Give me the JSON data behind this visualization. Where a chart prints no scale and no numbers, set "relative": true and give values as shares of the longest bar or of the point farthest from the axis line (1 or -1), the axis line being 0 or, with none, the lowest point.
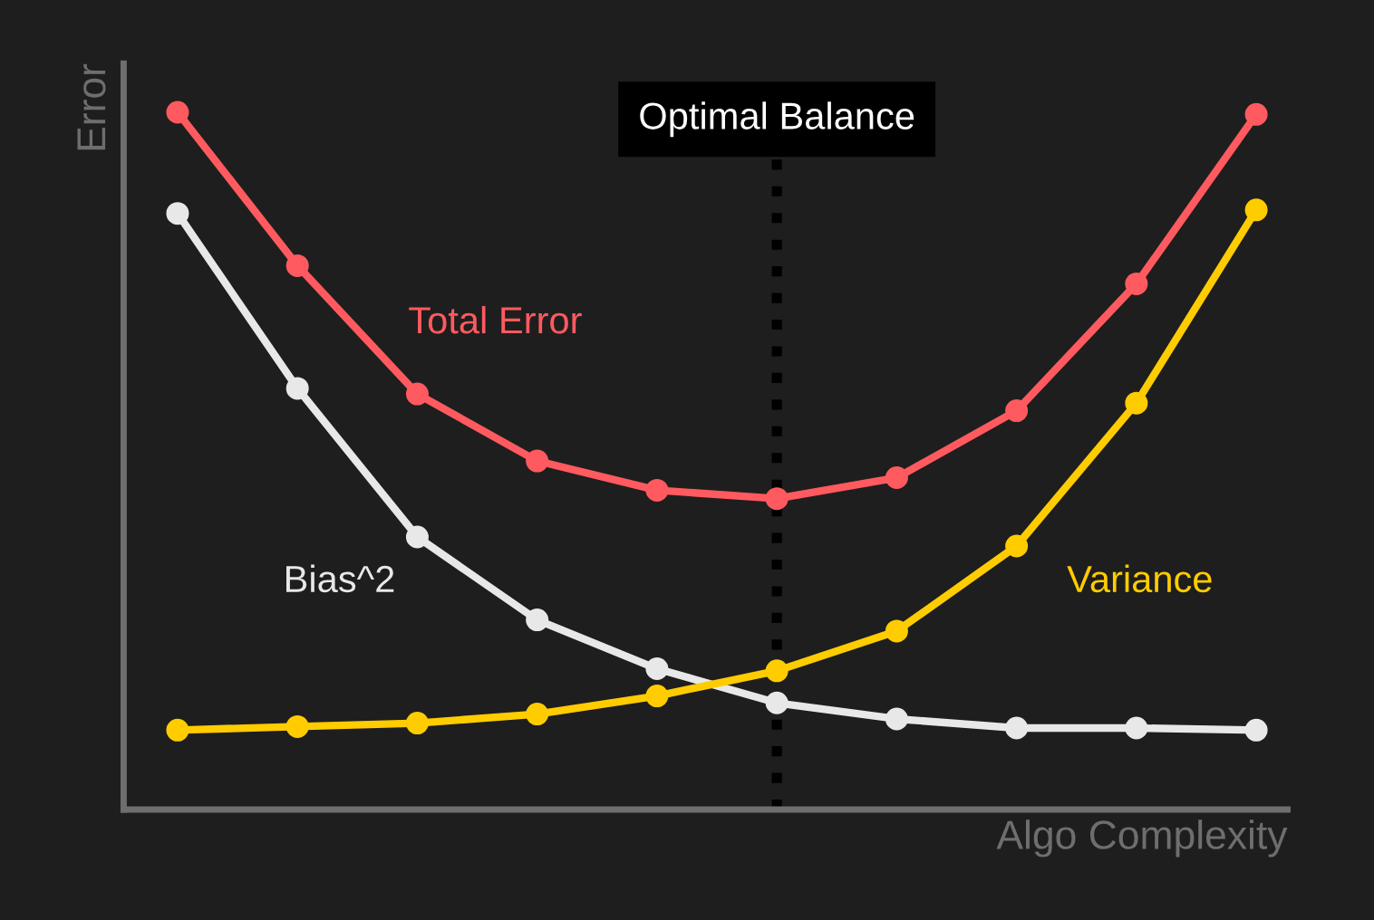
{
  "chart_data": {
    "type": "line",
    "relative": true,
    "xlabel": "Algo Complexity",
    "ylabel": "Error",
    "categories": [
      null,
      null,
      null,
      null,
      null,
      null,
      null,
      null,
      null,
      null
    ],
    "series": [
      {
        "name": "Total Error",
        "color": "#ff5a5f",
        "values": [
          1.0,
          0.78,
          0.596,
          0.5,
          0.458,
          0.446,
          0.476,
          0.572,
          0.754,
          0.997
        ]
      },
      {
        "name": "Bias^2",
        "color": "#e8e8e8",
        "values": [
          0.855,
          0.604,
          0.391,
          0.272,
          0.202,
          0.153,
          0.13,
          0.117,
          0.117,
          0.114
        ]
      },
      {
        "name": "Variance",
        "color": "#ffcc00",
        "values": [
          0.114,
          0.119,
          0.124,
          0.137,
          0.163,
          0.199,
          0.256,
          0.378,
          0.583,
          0.86
        ]
      }
    ],
    "annotations": [
      "Optimal Balance"
    ],
    "marker": "circle",
    "line_style": "solid",
    "grid": false,
    "legend": false
  }
}
